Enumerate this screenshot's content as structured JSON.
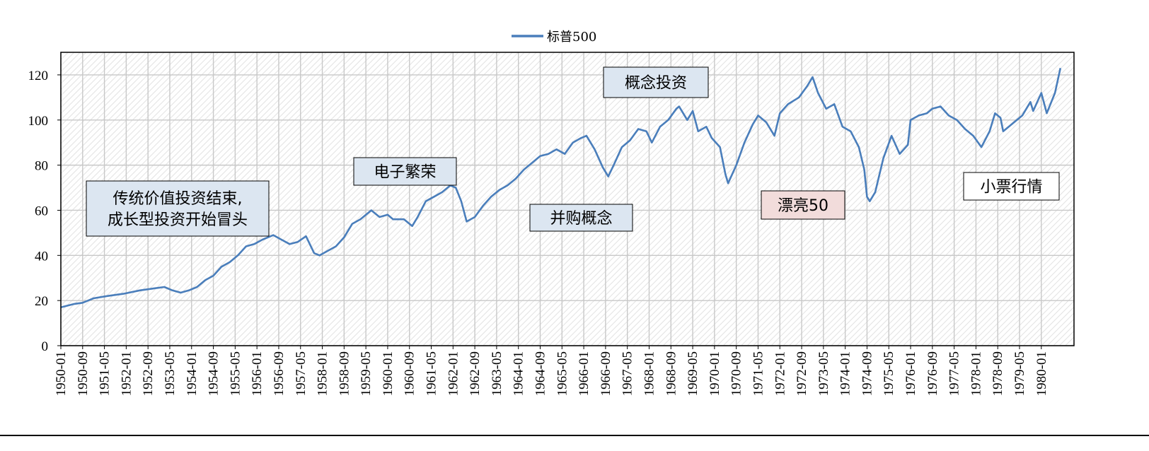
{
  "chart_data": {
    "type": "line",
    "title": "",
    "xlabel": "",
    "ylabel": "",
    "ylim": [
      0,
      130
    ],
    "yticks": [
      0,
      20,
      40,
      60,
      80,
      100,
      120
    ],
    "grid": true,
    "legend_placement": "top-center",
    "x_tick_labels": [
      "1950-01",
      "1950-09",
      "1951-05",
      "1952-01",
      "1952-09",
      "1953-05",
      "1954-01",
      "1954-09",
      "1955-05",
      "1956-01",
      "1956-09",
      "1957-05",
      "1958-01",
      "1958-09",
      "1959-05",
      "1960-01",
      "1960-09",
      "1961-05",
      "1962-01",
      "1962-09",
      "1963-05",
      "1964-01",
      "1964-09",
      "1965-05",
      "1966-01",
      "1966-09",
      "1967-05",
      "1968-01",
      "1968-09",
      "1969-05",
      "1970-01",
      "1970-09",
      "1971-05",
      "1972-01",
      "1972-09",
      "1973-05",
      "1974-01",
      "1974-09",
      "1975-05",
      "1976-01",
      "1976-09",
      "1977-05",
      "1978-01",
      "1978-09",
      "1979-05",
      "1980-01"
    ],
    "series": [
      {
        "name": "标普500",
        "color": "#4a7ebb",
        "points": [
          [
            "1950-01",
            17
          ],
          [
            "1950-06",
            18.5
          ],
          [
            "1950-09",
            19
          ],
          [
            "1951-01",
            21
          ],
          [
            "1951-06",
            22
          ],
          [
            "1951-12",
            23
          ],
          [
            "1952-06",
            24.5
          ],
          [
            "1952-12",
            25.5
          ],
          [
            "1953-03",
            26
          ],
          [
            "1953-06",
            24.5
          ],
          [
            "1953-09",
            23.5
          ],
          [
            "1953-12",
            24.5
          ],
          [
            "1954-03",
            26
          ],
          [
            "1954-06",
            29
          ],
          [
            "1954-09",
            31
          ],
          [
            "1954-12",
            35
          ],
          [
            "1955-03",
            37
          ],
          [
            "1955-06",
            40
          ],
          [
            "1955-09",
            44
          ],
          [
            "1955-12",
            45
          ],
          [
            "1956-03",
            47
          ],
          [
            "1956-07",
            49
          ],
          [
            "1956-10",
            47
          ],
          [
            "1957-01",
            45
          ],
          [
            "1957-04",
            46
          ],
          [
            "1957-07",
            48.5
          ],
          [
            "1957-10",
            41
          ],
          [
            "1957-12",
            40
          ],
          [
            "1958-03",
            42
          ],
          [
            "1958-06",
            44
          ],
          [
            "1958-09",
            48
          ],
          [
            "1958-12",
            54
          ],
          [
            "1959-03",
            56
          ],
          [
            "1959-07",
            60
          ],
          [
            "1959-10",
            57
          ],
          [
            "1960-01",
            58
          ],
          [
            "1960-03",
            56
          ],
          [
            "1960-07",
            56
          ],
          [
            "1960-10",
            53
          ],
          [
            "1960-12",
            57
          ],
          [
            "1961-03",
            64
          ],
          [
            "1961-06",
            66
          ],
          [
            "1961-09",
            68
          ],
          [
            "1961-12",
            71
          ],
          [
            "1962-02",
            70
          ],
          [
            "1962-04",
            64
          ],
          [
            "1962-06",
            55
          ],
          [
            "1962-09",
            57
          ],
          [
            "1962-12",
            62
          ],
          [
            "1963-03",
            66
          ],
          [
            "1963-06",
            69
          ],
          [
            "1963-09",
            71
          ],
          [
            "1963-12",
            74
          ],
          [
            "1964-03",
            78
          ],
          [
            "1964-06",
            81
          ],
          [
            "1964-09",
            84
          ],
          [
            "1964-12",
            85
          ],
          [
            "1965-03",
            87
          ],
          [
            "1965-06",
            85
          ],
          [
            "1965-09",
            90
          ],
          [
            "1965-12",
            92
          ],
          [
            "1966-02",
            93
          ],
          [
            "1966-05",
            87
          ],
          [
            "1966-08",
            79
          ],
          [
            "1966-10",
            75
          ],
          [
            "1966-12",
            80
          ],
          [
            "1967-03",
            88
          ],
          [
            "1967-06",
            91
          ],
          [
            "1967-09",
            96
          ],
          [
            "1967-12",
            95
          ],
          [
            "1968-02",
            90
          ],
          [
            "1968-05",
            97
          ],
          [
            "1968-08",
            100
          ],
          [
            "1968-11",
            105
          ],
          [
            "1968-12",
            106
          ],
          [
            "1969-03",
            100
          ],
          [
            "1969-05",
            104
          ],
          [
            "1969-07",
            95
          ],
          [
            "1969-10",
            97
          ],
          [
            "1969-12",
            92
          ],
          [
            "1970-03",
            88
          ],
          [
            "1970-05",
            76
          ],
          [
            "1970-06",
            72
          ],
          [
            "1970-09",
            80
          ],
          [
            "1970-12",
            90
          ],
          [
            "1971-03",
            98
          ],
          [
            "1971-05",
            102
          ],
          [
            "1971-08",
            99
          ],
          [
            "1971-11",
            93
          ],
          [
            "1972-01",
            103
          ],
          [
            "1972-04",
            107
          ],
          [
            "1972-08",
            110
          ],
          [
            "1972-11",
            115
          ],
          [
            "1973-01",
            119
          ],
          [
            "1973-03",
            112
          ],
          [
            "1973-06",
            105
          ],
          [
            "1973-09",
            107
          ],
          [
            "1973-12",
            97
          ],
          [
            "1974-03",
            95
          ],
          [
            "1974-06",
            88
          ],
          [
            "1974-08",
            78
          ],
          [
            "1974-09",
            66
          ],
          [
            "1974-10",
            64
          ],
          [
            "1974-12",
            68
          ],
          [
            "1975-03",
            83
          ],
          [
            "1975-06",
            93
          ],
          [
            "1975-09",
            85
          ],
          [
            "1975-12",
            89
          ],
          [
            "1976-01",
            100
          ],
          [
            "1976-04",
            102
          ],
          [
            "1976-07",
            103
          ],
          [
            "1976-09",
            105
          ],
          [
            "1976-12",
            106
          ],
          [
            "1977-03",
            102
          ],
          [
            "1977-06",
            100
          ],
          [
            "1977-09",
            96
          ],
          [
            "1977-12",
            93
          ],
          [
            "1978-03",
            88
          ],
          [
            "1978-06",
            95
          ],
          [
            "1978-08",
            103
          ],
          [
            "1978-10",
            101
          ],
          [
            "1978-11",
            95
          ],
          [
            "1979-03",
            99
          ],
          [
            "1979-06",
            102
          ],
          [
            "1979-09",
            108
          ],
          [
            "1979-10",
            104
          ],
          [
            "1980-01",
            112
          ],
          [
            "1980-03",
            103
          ],
          [
            "1980-06",
            112
          ],
          [
            "1980-08",
            123
          ]
        ]
      }
    ],
    "annotations": [
      {
        "lines": [
          "传统价值投资结束,",
          "成长型投资开始冒头"
        ],
        "fill": "#dce6f1"
      },
      {
        "lines": [
          "电子繁荣"
        ],
        "fill": "#dce6f1"
      },
      {
        "lines": [
          "并购概念"
        ],
        "fill": "#dce6f1"
      },
      {
        "lines": [
          "概念投资"
        ],
        "fill": "#dce6f1"
      },
      {
        "lines": [
          "漂亮50"
        ],
        "fill": "#f2dcdb"
      },
      {
        "lines": [
          "小票行情"
        ],
        "fill": "#ffffff"
      }
    ]
  }
}
